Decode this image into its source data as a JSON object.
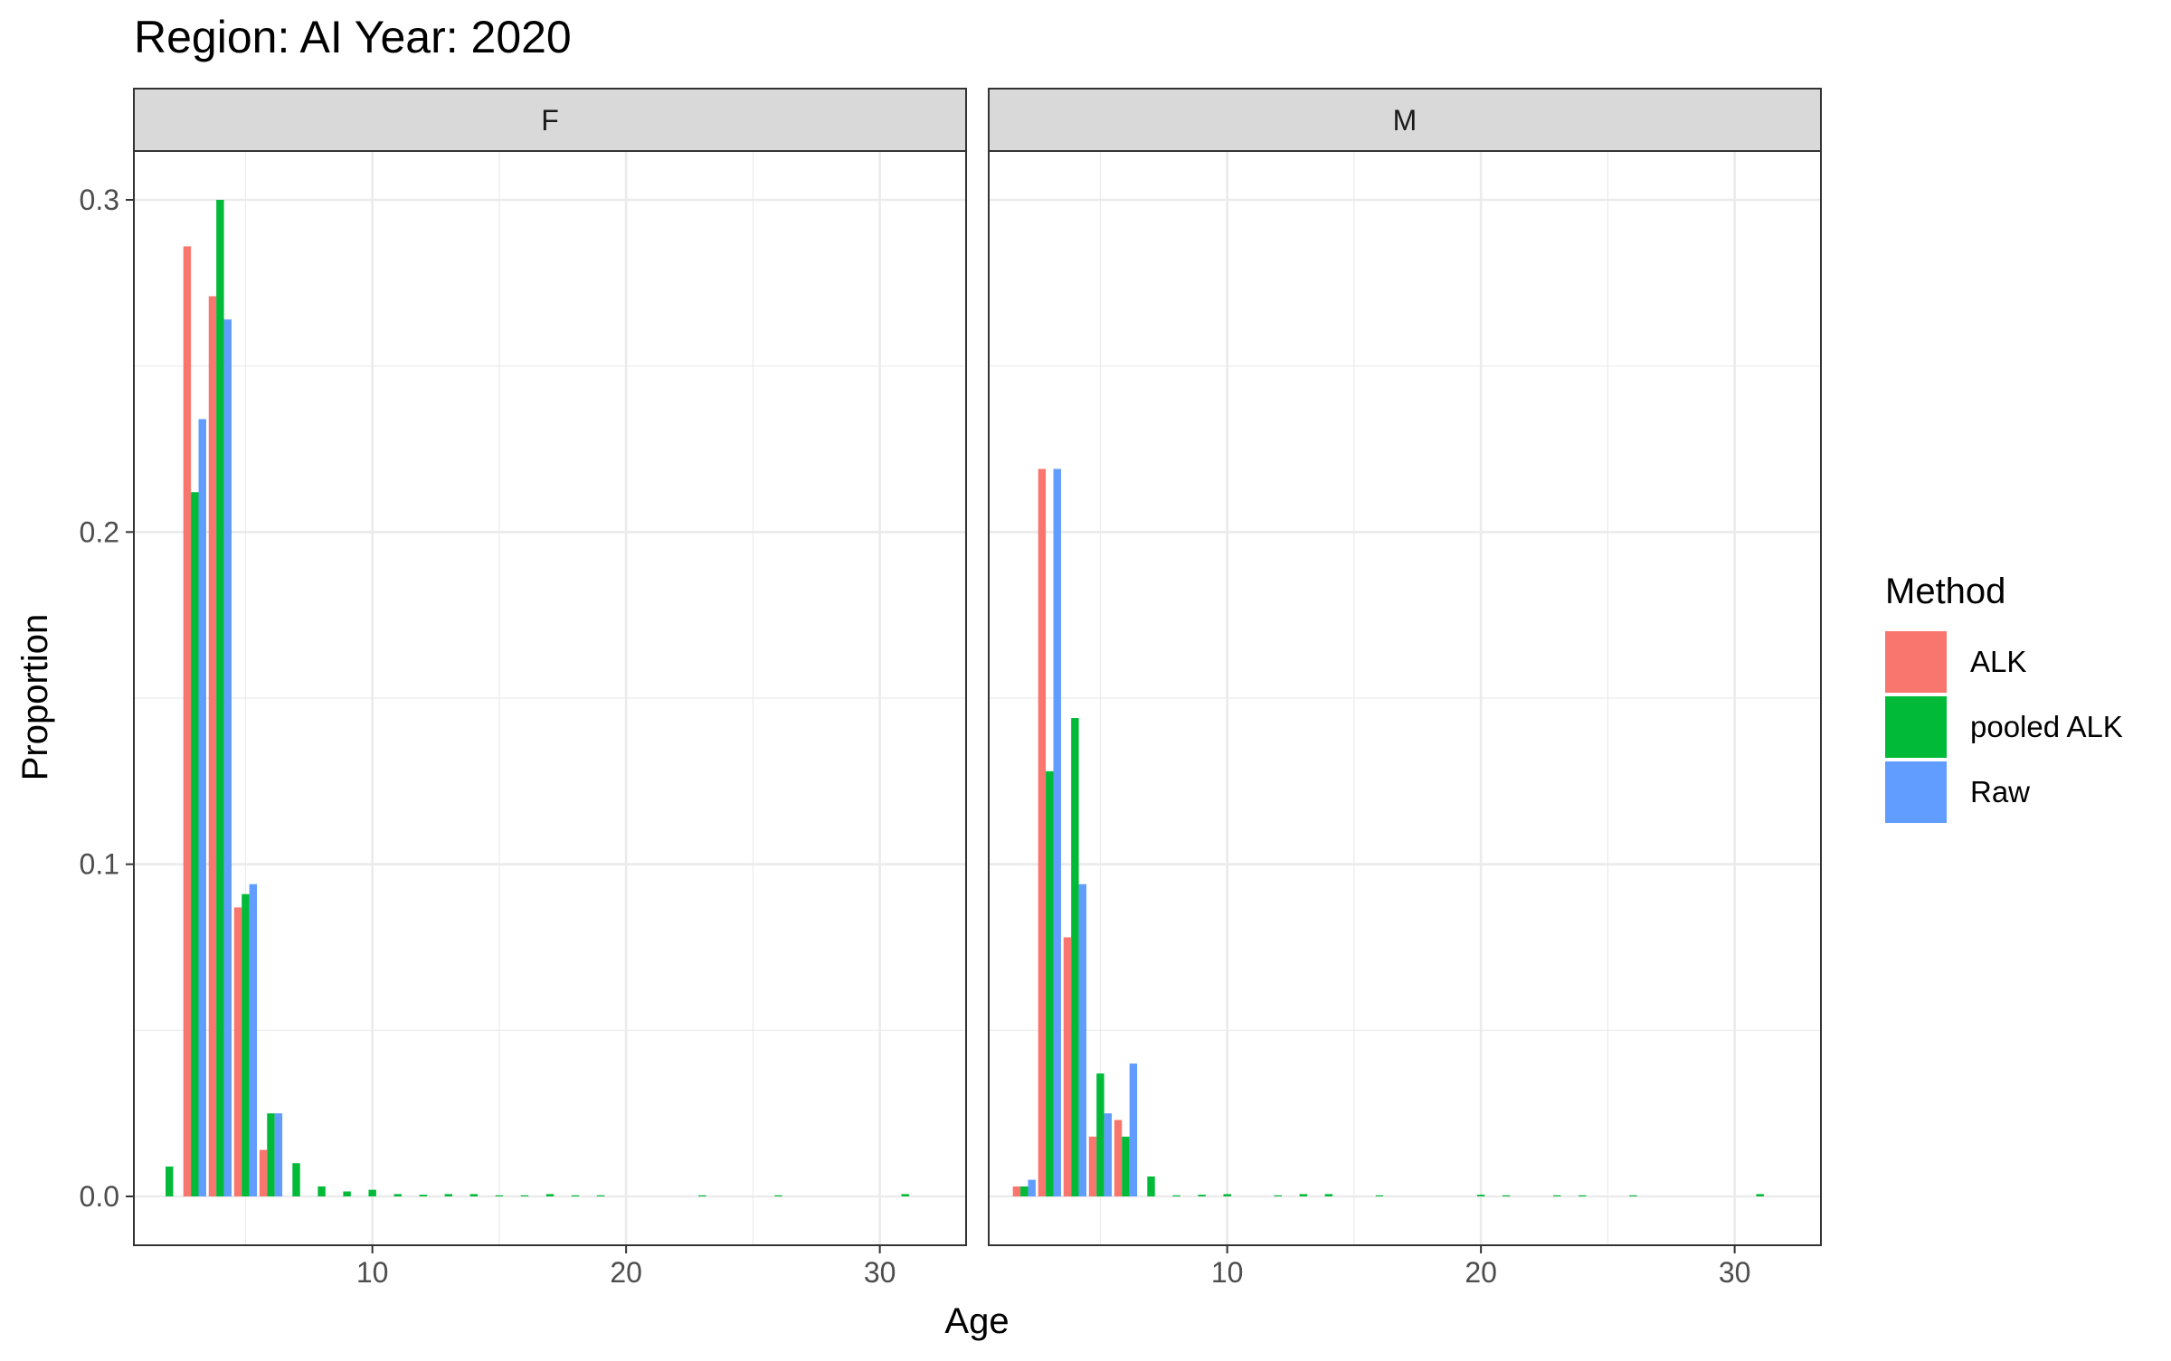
{
  "chart_data": {
    "type": "bar",
    "title": "Region: AI Year: 2020",
    "xlabel": "Age",
    "ylabel": "Proportion",
    "xlim": [
      0.6,
      33.4
    ],
    "ylim": [
      -0.015,
      0.3
    ],
    "x_ticks": [
      10,
      20,
      30
    ],
    "y_ticks": [
      0.0,
      0.1,
      0.2,
      0.3
    ],
    "y_tick_labels": [
      "0.0",
      "0.1",
      "0.2",
      "0.3"
    ],
    "grid": true,
    "legend": {
      "title": "Method",
      "position": "right",
      "entries": [
        {
          "name": "ALK",
          "color": "#F8766D"
        },
        {
          "name": "pooled ALK",
          "color": "#00BA38"
        },
        {
          "name": "Raw",
          "color": "#619CFF"
        }
      ]
    },
    "panels": [
      {
        "facet": "F",
        "series": [
          {
            "name": "ALK",
            "color": "#F8766D",
            "points": [
              [
                3,
                0.286
              ],
              [
                4,
                0.271
              ],
              [
                5,
                0.087
              ],
              [
                6,
                0.014
              ]
            ]
          },
          {
            "name": "pooled ALK",
            "color": "#00BA38",
            "points": [
              [
                2,
                0.009
              ],
              [
                3,
                0.212
              ],
              [
                4,
                0.3
              ],
              [
                5,
                0.091
              ],
              [
                6,
                0.025
              ],
              [
                7,
                0.01
              ],
              [
                8,
                0.003
              ],
              [
                9,
                0.0015
              ],
              [
                10,
                0.002
              ],
              [
                11,
                0.0007
              ],
              [
                12,
                0.0005
              ],
              [
                13,
                0.0007
              ],
              [
                14,
                0.0007
              ],
              [
                15,
                0.0003
              ],
              [
                16,
                0.0003
              ],
              [
                17,
                0.0007
              ],
              [
                18,
                0.0003
              ],
              [
                19,
                0.0003
              ],
              [
                23,
                0.0003
              ],
              [
                26,
                0.0003
              ],
              [
                31,
                0.0007
              ]
            ]
          },
          {
            "name": "Raw",
            "color": "#619CFF",
            "points": [
              [
                3,
                0.234
              ],
              [
                4,
                0.264
              ],
              [
                5,
                0.094
              ],
              [
                6,
                0.025
              ]
            ]
          }
        ]
      },
      {
        "facet": "M",
        "series": [
          {
            "name": "ALK",
            "color": "#F8766D",
            "points": [
              [
                2,
                0.003
              ],
              [
                3,
                0.219
              ],
              [
                4,
                0.078
              ],
              [
                5,
                0.018
              ],
              [
                6,
                0.023
              ]
            ]
          },
          {
            "name": "pooled ALK",
            "color": "#00BA38",
            "points": [
              [
                2,
                0.003
              ],
              [
                3,
                0.128
              ],
              [
                4,
                0.144
              ],
              [
                5,
                0.037
              ],
              [
                6,
                0.018
              ],
              [
                7,
                0.006
              ],
              [
                8,
                0.0003
              ],
              [
                9,
                0.0005
              ],
              [
                10,
                0.0007
              ],
              [
                12,
                0.0003
              ],
              [
                13,
                0.0007
              ],
              [
                14,
                0.0007
              ],
              [
                16,
                0.0003
              ],
              [
                20,
                0.0005
              ],
              [
                21,
                0.0003
              ],
              [
                23,
                0.0003
              ],
              [
                24,
                0.0003
              ],
              [
                26,
                0.0003
              ],
              [
                31,
                0.0007
              ]
            ]
          },
          {
            "name": "Raw",
            "color": "#619CFF",
            "points": [
              [
                2,
                0.005
              ],
              [
                3,
                0.219
              ],
              [
                4,
                0.094
              ],
              [
                5,
                0.025
              ],
              [
                6,
                0.04
              ]
            ]
          }
        ]
      }
    ]
  }
}
